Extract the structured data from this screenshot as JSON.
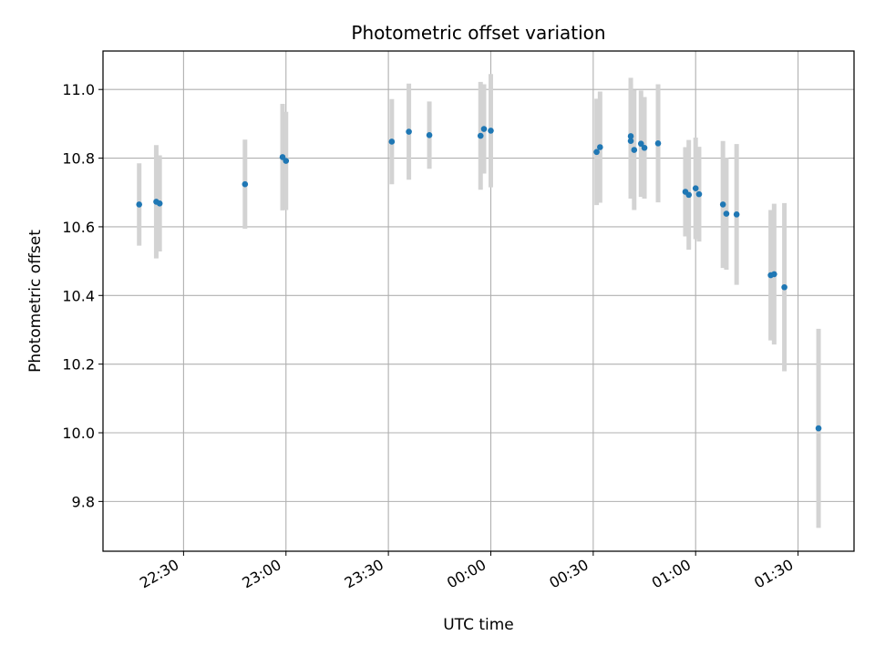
{
  "chart_data": {
    "type": "scatter",
    "title": "Photometric offset variation",
    "xlabel": "UTC time",
    "ylabel": "Photometric offset",
    "x_tick_labels": [
      "22:30",
      "23:00",
      "23:30",
      "00:00",
      "00:30",
      "01:00",
      "01:30"
    ],
    "x_ticks_minutes_from_2230": [
      0,
      30,
      60,
      90,
      120,
      150,
      180
    ],
    "xlim_minutes_from_2230": [
      -23.6,
      196.4
    ],
    "y_ticks": [
      9.8,
      10.0,
      10.2,
      10.4,
      10.6,
      10.8,
      11.0
    ],
    "y_tick_labels": [
      "9.8",
      "10.0",
      "10.2",
      "10.4",
      "10.6",
      "10.8",
      "11.0"
    ],
    "ylim": [
      9.655,
      11.112
    ],
    "grid": true,
    "colors": {
      "point": "#1f77b4",
      "errorbar": "#d3d3d3",
      "grid": "#b0b0b0",
      "axis": "#000000"
    },
    "points": [
      {
        "t": "22:17",
        "y": 10.665,
        "err": 0.12
      },
      {
        "t": "22:22",
        "y": 10.673,
        "err": 0.165
      },
      {
        "t": "22:23",
        "y": 10.668,
        "err": 0.14
      },
      {
        "t": "22:48",
        "y": 10.724,
        "err": 0.13
      },
      {
        "t": "22:59",
        "y": 10.803,
        "err": 0.155
      },
      {
        "t": "23:00",
        "y": 10.792,
        "err": 0.143
      },
      {
        "t": "23:31",
        "y": 10.848,
        "err": 0.124
      },
      {
        "t": "23:36",
        "y": 10.877,
        "err": 0.14
      },
      {
        "t": "23:42",
        "y": 10.867,
        "err": 0.098
      },
      {
        "t": "23:57",
        "y": 10.865,
        "err": 0.157
      },
      {
        "t": "23:58",
        "y": 10.885,
        "err": 0.13
      },
      {
        "t": "00:00",
        "y": 10.88,
        "err": 0.165
      },
      {
        "t": "00:31",
        "y": 10.818,
        "err": 0.155
      },
      {
        "t": "00:32",
        "y": 10.832,
        "err": 0.162
      },
      {
        "t": "00:41",
        "y": 10.864,
        "err": 0.17
      },
      {
        "t": "00:41",
        "y": 10.85,
        "err": 0.168
      },
      {
        "t": "00:42",
        "y": 10.824,
        "err": 0.175
      },
      {
        "t": "00:44",
        "y": 10.842,
        "err": 0.155
      },
      {
        "t": "00:45",
        "y": 10.83,
        "err": 0.148
      },
      {
        "t": "00:49",
        "y": 10.843,
        "err": 0.172
      },
      {
        "t": "00:57",
        "y": 10.702,
        "err": 0.13
      },
      {
        "t": "00:58",
        "y": 10.693,
        "err": 0.16
      },
      {
        "t": "01:00",
        "y": 10.712,
        "err": 0.148
      },
      {
        "t": "01:01",
        "y": 10.695,
        "err": 0.138
      },
      {
        "t": "01:08",
        "y": 10.665,
        "err": 0.185
      },
      {
        "t": "01:09",
        "y": 10.638,
        "err": 0.163
      },
      {
        "t": "01:12",
        "y": 10.636,
        "err": 0.205
      },
      {
        "t": "01:22",
        "y": 10.459,
        "err": 0.19
      },
      {
        "t": "01:23",
        "y": 10.462,
        "err": 0.205
      },
      {
        "t": "01:26",
        "y": 10.424,
        "err": 0.245
      },
      {
        "t": "01:36",
        "y": 10.013,
        "err": 0.29
      }
    ]
  }
}
